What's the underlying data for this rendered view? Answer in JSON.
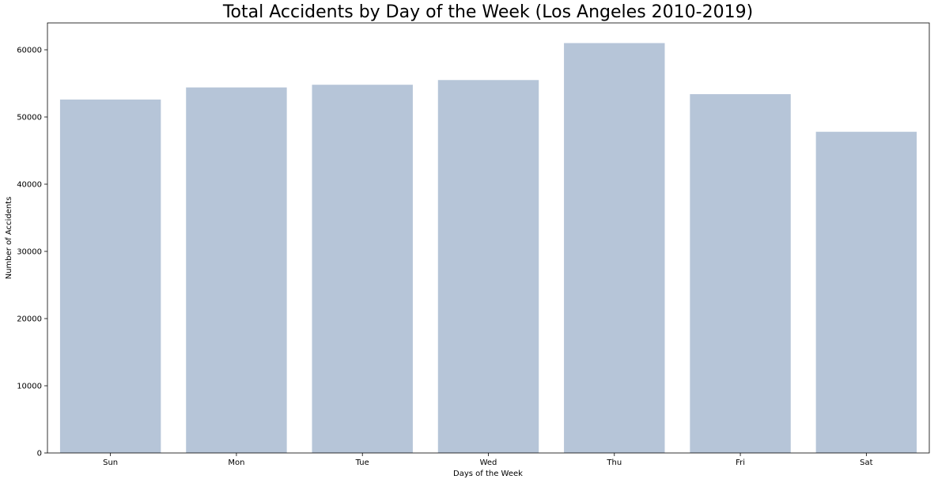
{
  "chart_data": {
    "type": "bar",
    "title": "Total Accidents by Day of the Week (Los Angeles 2010-2019)",
    "xlabel": "Days of the Week",
    "ylabel": "Number of Accidents",
    "categories": [
      "Sun",
      "Mon",
      "Tue",
      "Wed",
      "Thu",
      "Fri",
      "Sat"
    ],
    "values": [
      52600,
      54400,
      54800,
      55500,
      61000,
      53400,
      47800
    ],
    "ylim": [
      0,
      64000
    ],
    "yticks": [
      0,
      10000,
      20000,
      30000,
      40000,
      50000,
      60000
    ],
    "ytick_labels": [
      "0",
      "10000",
      "20000",
      "30000",
      "40000",
      "50000",
      "60000"
    ],
    "bar_color": "#b6c5d8",
    "grid": false,
    "legend": "none"
  }
}
